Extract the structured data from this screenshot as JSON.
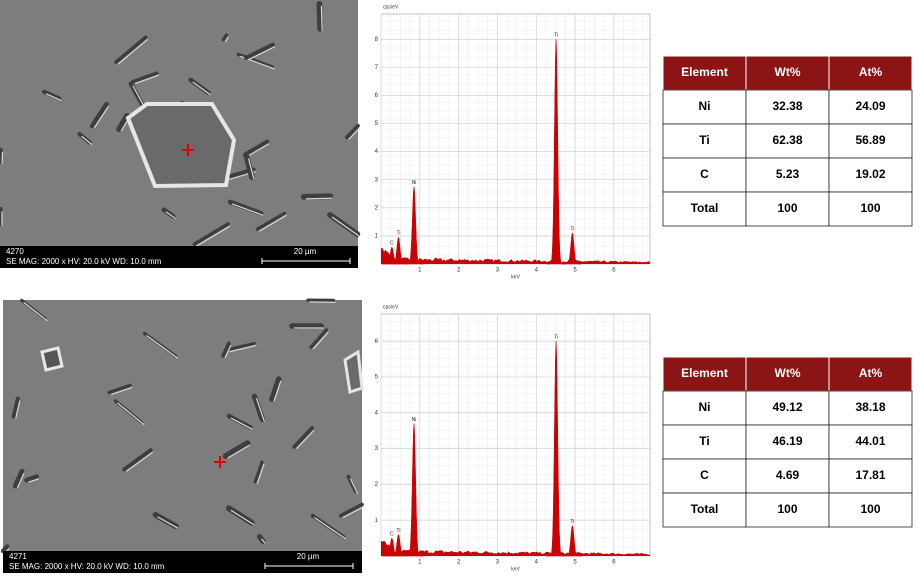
{
  "panels": [
    {
      "sem": {
        "id": "4270",
        "info": "SE  MAG: 2000 x  HV: 20.0 kV  WD: 10.0 mm",
        "scale": "20 µm"
      },
      "spectrum": {
        "ylabel": "cps/eV",
        "xlabel": "keV",
        "xlim": [
          0,
          6.93
        ],
        "ylim": [
          0,
          8.9
        ],
        "xticks": [
          1,
          2,
          3,
          4,
          5,
          6
        ],
        "yticks": [
          1,
          2,
          3,
          4,
          5,
          6,
          7,
          8
        ],
        "peaks": [
          {
            "label": "C",
            "x": 0.28,
            "y": 0.6
          },
          {
            "label": "Ti",
            "x": 0.45,
            "y": 0.95
          },
          {
            "label": "Ni",
            "x": 0.85,
            "y": 2.75
          },
          {
            "label": "Ti",
            "x": 4.51,
            "y": 8.0
          },
          {
            "label": "Ti",
            "x": 4.93,
            "y": 1.1
          }
        ]
      },
      "table": {
        "header": [
          "Element",
          "Wt%",
          "At%"
        ],
        "rows": [
          [
            "Ni",
            32.38,
            24.09
          ],
          [
            "Ti",
            62.38,
            56.89
          ],
          [
            "C",
            5.23,
            19.02
          ],
          [
            "Total",
            100,
            100
          ]
        ]
      }
    },
    {
      "sem": {
        "id": "4271",
        "info": "SE  MAG: 2000 x  HV: 20.0 kV  WD: 10.0 mm",
        "scale": "20 µm"
      },
      "spectrum": {
        "ylabel": "cps/eV",
        "xlabel": "keV",
        "xlim": [
          0,
          6.93
        ],
        "ylim": [
          0,
          6.76
        ],
        "xticks": [
          1,
          2,
          3,
          4,
          5,
          6
        ],
        "yticks": [
          1,
          2,
          3,
          4,
          5,
          6
        ],
        "peaks": [
          {
            "label": "C",
            "x": 0.28,
            "y": 0.5
          },
          {
            "label": "Ti",
            "x": 0.45,
            "y": 0.6
          },
          {
            "label": "Ni",
            "x": 0.85,
            "y": 3.7
          },
          {
            "label": "Ti",
            "x": 4.51,
            "y": 6.0
          },
          {
            "label": "Ti",
            "x": 4.93,
            "y": 0.85
          }
        ]
      },
      "table": {
        "header": [
          "Element",
          "Wt%",
          "At%"
        ],
        "rows": [
          [
            "Ni",
            49.12,
            38.18
          ],
          [
            "Ti",
            46.19,
            44.01
          ],
          [
            "C",
            4.69,
            17.81
          ],
          [
            "Total",
            100,
            100
          ]
        ]
      }
    }
  ]
}
